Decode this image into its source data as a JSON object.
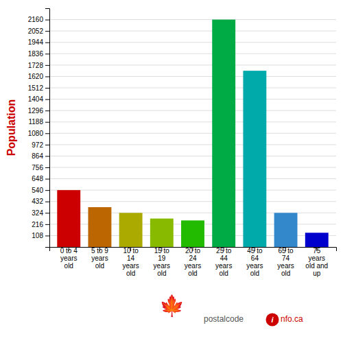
{
  "chart_data": {
    "type": "bar",
    "categories": [
      "0 to 4\nyears\nold",
      "5 to 9\nyears\nold",
      "10 to\n14\nyears\nold",
      "15 to\n19\nyears\nold",
      "20 to\n24\nyears\nold",
      "25 to\n44\nyears\nold",
      "45 to\n64\nyears\nold",
      "65 to\n74\nyears\nold",
      "75\nyears\nold and\nup"
    ],
    "values": [
      540,
      378,
      324,
      270,
      252,
      2160,
      1674,
      324,
      135
    ],
    "colors": [
      "#cc0000",
      "#bb6600",
      "#aaaa00",
      "#88bb00",
      "#22bb00",
      "#00aa44",
      "#00aaaa",
      "#3388cc",
      "#0000cc"
    ],
    "y_label": "Population",
    "ylim": [
      0,
      2268
    ],
    "yticks": [
      108,
      216,
      324,
      432,
      540,
      648,
      756,
      864,
      972,
      1080,
      1188,
      1296,
      1404,
      1512,
      1620,
      1728,
      1836,
      1944,
      2052,
      2160
    ],
    "grid": true,
    "annotations": [
      "🍁",
      "postalcode",
      "i",
      "nfo.ca"
    ]
  }
}
